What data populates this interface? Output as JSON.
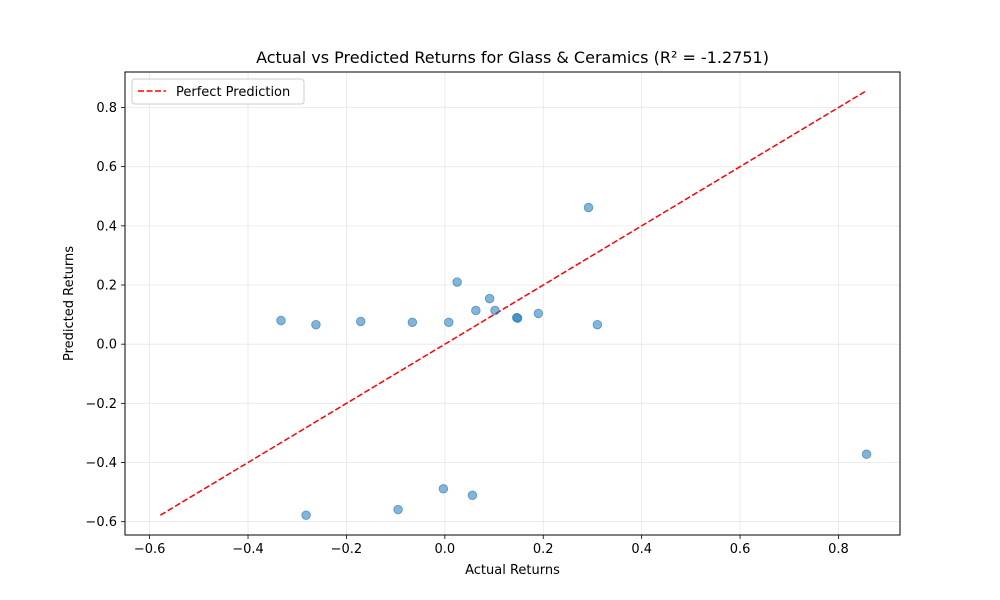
{
  "chart_data": {
    "type": "scatter",
    "title": "Actual vs Predicted Returns for Glass & Ceramics (R² = -1.2751)",
    "xlabel": "Actual Returns",
    "ylabel": "Predicted Returns",
    "xlim": [
      -0.65,
      0.925
    ],
    "ylim": [
      -0.645,
      0.92
    ],
    "xticks": [
      -0.6,
      -0.4,
      -0.2,
      0.0,
      0.2,
      0.4,
      0.6,
      0.8
    ],
    "xtick_labels": [
      "−0.6",
      "−0.4",
      "−0.2",
      "0.0",
      "0.2",
      "0.4",
      "0.6",
      "0.8"
    ],
    "yticks": [
      -0.6,
      -0.4,
      -0.2,
      0.0,
      0.2,
      0.4,
      0.6,
      0.8
    ],
    "ytick_labels": [
      "−0.6",
      "−0.4",
      "−0.2",
      "0.0",
      "0.2",
      "0.4",
      "0.6",
      "0.8"
    ],
    "grid": true,
    "legend_position": "top-left",
    "series": [
      {
        "kind": "scatter",
        "color": "#1f77b4",
        "x": [
          -0.333,
          -0.262,
          -0.171,
          -0.066,
          0.008,
          0.025,
          0.063,
          0.091,
          0.102,
          0.146,
          0.148,
          0.19,
          0.292,
          0.31,
          0.857,
          -0.095,
          -0.003,
          0.056,
          -0.282
        ],
        "y": [
          0.08,
          0.066,
          0.077,
          0.074,
          0.074,
          0.21,
          0.114,
          0.154,
          0.114,
          0.09,
          0.088,
          0.104,
          0.462,
          0.066,
          -0.372,
          -0.559,
          -0.489,
          -0.511,
          -0.578
        ]
      },
      {
        "kind": "line",
        "name": "Perfect Prediction",
        "color": "#ff0000",
        "dash": "dashed",
        "x": [
          -0.578,
          0.857
        ],
        "y": [
          -0.578,
          0.857
        ]
      }
    ]
  }
}
